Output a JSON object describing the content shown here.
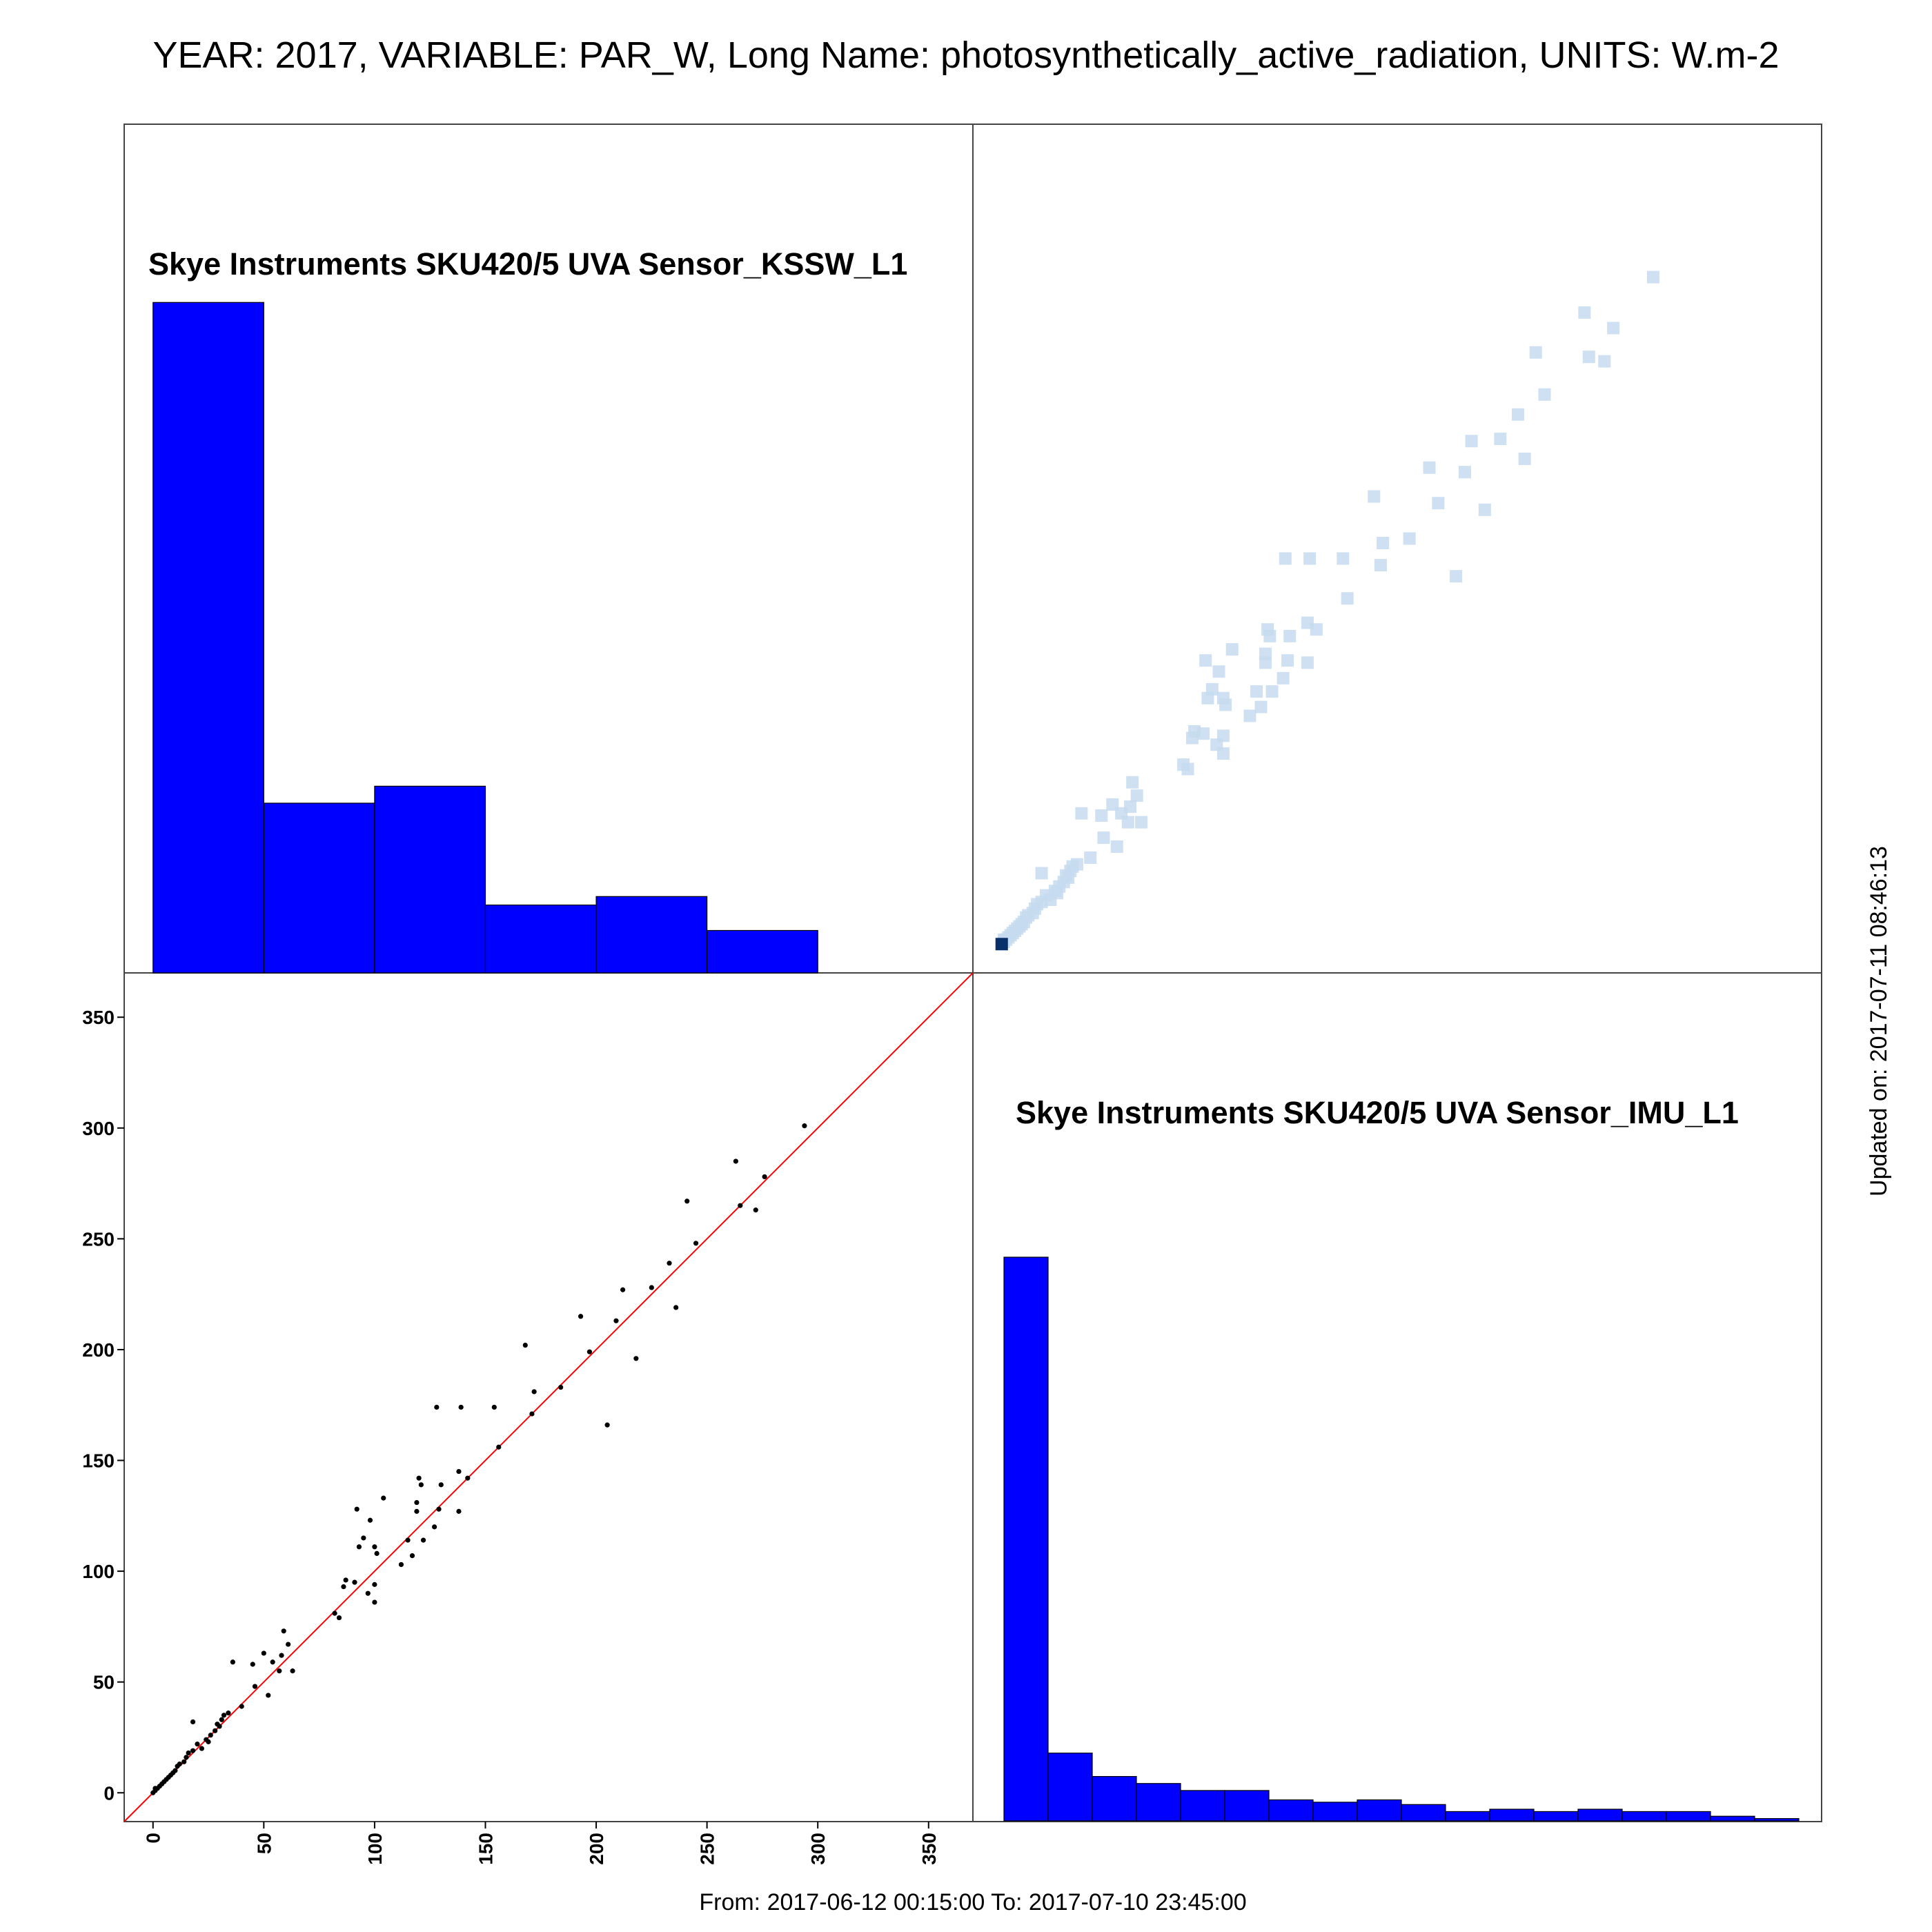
{
  "title": "YEAR: 2017, VARIABLE: PAR_W, Long Name: photosynthetically_active_radiation, UNITS: W.m-2",
  "footer": "From: 2017-06-12 00:15:00 To: 2017-07-10 23:45:00",
  "updated": "Updated on: 2017-07-11 08:46:13",
  "colors": {
    "bar": "#0000ff",
    "identity_line": "#ff0000",
    "points": "#000000",
    "density_light": "#c6dbef",
    "density_dark": "#08306b"
  },
  "chart_data": [
    {
      "type": "bar",
      "panel": "top-left",
      "title": "Skye Instruments SKU420/5 UVA Sensor_KSSW_L1",
      "bin_edges": [
        0,
        50,
        100,
        150,
        200,
        250,
        300
      ],
      "values": [
        0.79,
        0.2,
        0.22,
        0.08,
        0.09,
        0.05
      ]
    },
    {
      "type": "heatmap",
      "panel": "top-right",
      "note_points_same_as_scatter": true
    },
    {
      "type": "scatter",
      "panel": "bottom-left",
      "xlim": [
        -13,
        370
      ],
      "ylim": [
        -13,
        370
      ],
      "xticks": [
        "0",
        "50",
        "100",
        "150",
        "200",
        "250",
        "300",
        "350"
      ],
      "yticks": [
        "0",
        "50",
        "100",
        "150",
        "200",
        "250",
        "300",
        "350"
      ],
      "grid": false,
      "reference_line": "y = x",
      "points": [
        [
          0,
          0
        ],
        [
          1,
          1
        ],
        [
          1,
          2
        ],
        [
          2,
          2
        ],
        [
          3,
          3
        ],
        [
          4,
          4
        ],
        [
          5,
          5
        ],
        [
          6,
          6
        ],
        [
          7,
          7
        ],
        [
          8,
          8
        ],
        [
          9,
          9
        ],
        [
          10,
          10
        ],
        [
          11,
          12
        ],
        [
          12,
          13
        ],
        [
          14,
          14
        ],
        [
          15,
          16
        ],
        [
          16,
          18
        ],
        [
          18,
          19
        ],
        [
          20,
          22
        ],
        [
          22,
          20
        ],
        [
          24,
          24
        ],
        [
          25,
          23
        ],
        [
          26,
          26
        ],
        [
          28,
          28
        ],
        [
          29,
          31
        ],
        [
          30,
          30
        ],
        [
          31,
          33
        ],
        [
          32,
          35
        ],
        [
          34,
          36
        ],
        [
          18,
          32
        ],
        [
          36,
          59
        ],
        [
          40,
          39
        ],
        [
          45,
          58
        ],
        [
          46,
          48
        ],
        [
          50,
          63
        ],
        [
          52,
          44
        ],
        [
          54,
          59
        ],
        [
          57,
          55
        ],
        [
          58,
          62
        ],
        [
          59,
          73
        ],
        [
          61,
          67
        ],
        [
          63,
          55
        ],
        [
          82,
          81
        ],
        [
          84,
          79
        ],
        [
          86,
          93
        ],
        [
          87,
          96
        ],
        [
          91,
          95
        ],
        [
          92,
          128
        ],
        [
          93,
          111
        ],
        [
          95,
          115
        ],
        [
          97,
          90
        ],
        [
          98,
          123
        ],
        [
          100,
          86
        ],
        [
          100,
          94
        ],
        [
          100,
          111
        ],
        [
          101,
          108
        ],
        [
          104,
          133
        ],
        [
          112,
          103
        ],
        [
          115,
          114
        ],
        [
          117,
          107
        ],
        [
          119,
          127
        ],
        [
          119,
          131
        ],
        [
          120,
          142
        ],
        [
          121,
          139
        ],
        [
          122,
          114
        ],
        [
          127,
          120
        ],
        [
          128,
          174
        ],
        [
          129,
          128
        ],
        [
          130,
          139
        ],
        [
          138,
          127
        ],
        [
          138,
          145
        ],
        [
          139,
          174
        ],
        [
          142,
          142
        ],
        [
          154,
          174
        ],
        [
          156,
          156
        ],
        [
          171,
          171
        ],
        [
          172,
          181
        ],
        [
          168,
          202
        ],
        [
          184,
          183
        ],
        [
          193,
          215
        ],
        [
          197,
          199
        ],
        [
          205,
          166
        ],
        [
          209,
          213
        ],
        [
          212,
          227
        ],
        [
          218,
          196
        ],
        [
          225,
          228
        ],
        [
          233,
          239
        ],
        [
          236,
          219
        ],
        [
          241,
          267
        ],
        [
          245,
          248
        ],
        [
          263,
          285
        ],
        [
          265,
          265
        ],
        [
          272,
          263
        ],
        [
          276,
          278
        ],
        [
          294,
          301
        ]
      ]
    },
    {
      "type": "bar",
      "panel": "bottom-right",
      "title": "Skye Instruments SKU420/5 UVA Sensor_IMU_L1",
      "values": [
        241,
        29,
        19,
        16,
        13,
        13,
        9,
        8,
        9,
        7,
        4,
        5,
        4,
        5,
        4,
        4,
        2,
        1
      ]
    }
  ]
}
